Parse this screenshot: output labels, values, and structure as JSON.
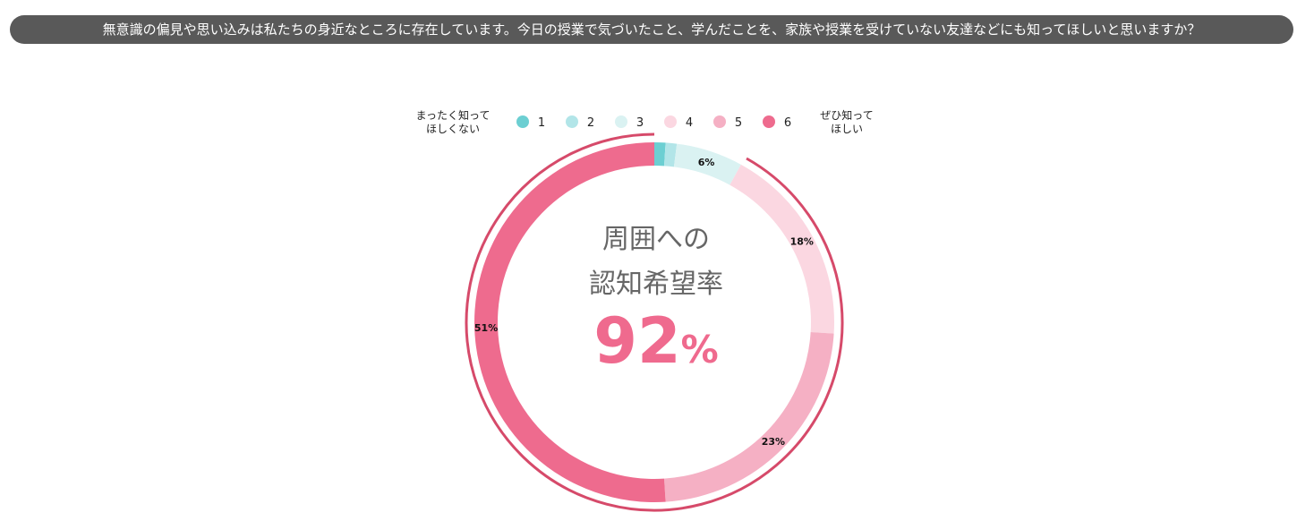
{
  "question": "無意識の偏見や思い込みは私たちの身近なところに存在しています。今日の授業で気づいたこと、学んだことを、家族や授業を受けていない友達などにも知ってほしいと思いますか？",
  "legend": {
    "left_label": [
      "まったく知って",
      "ほしくない"
    ],
    "right_label": [
      "ぜひ知って",
      "ほしい"
    ]
  },
  "center": {
    "title_line1": "周囲への",
    "title_line2": "認知希望率",
    "value": "92",
    "unit": "%"
  },
  "colors": {
    "highlight_arc": "#d64a6a",
    "center_value": "#ef6a8e"
  },
  "chart_data": {
    "type": "pie",
    "style": "donut",
    "categories": [
      "1",
      "2",
      "3",
      "4",
      "5",
      "6"
    ],
    "values": [
      1,
      1,
      6,
      18,
      23,
      51
    ],
    "labels": [
      "",
      "",
      "6%",
      "18%",
      "23%",
      "51%"
    ],
    "colors": [
      "#6ccfd2",
      "#b2e5e8",
      "#daf2f2",
      "#fbd7e1",
      "#f5b0c4",
      "#ee6b8e"
    ],
    "start_angle": "top",
    "direction": "clockwise",
    "legend_position": "top",
    "highlight": {
      "categories": [
        "4",
        "5",
        "6"
      ],
      "label": "92%"
    }
  }
}
